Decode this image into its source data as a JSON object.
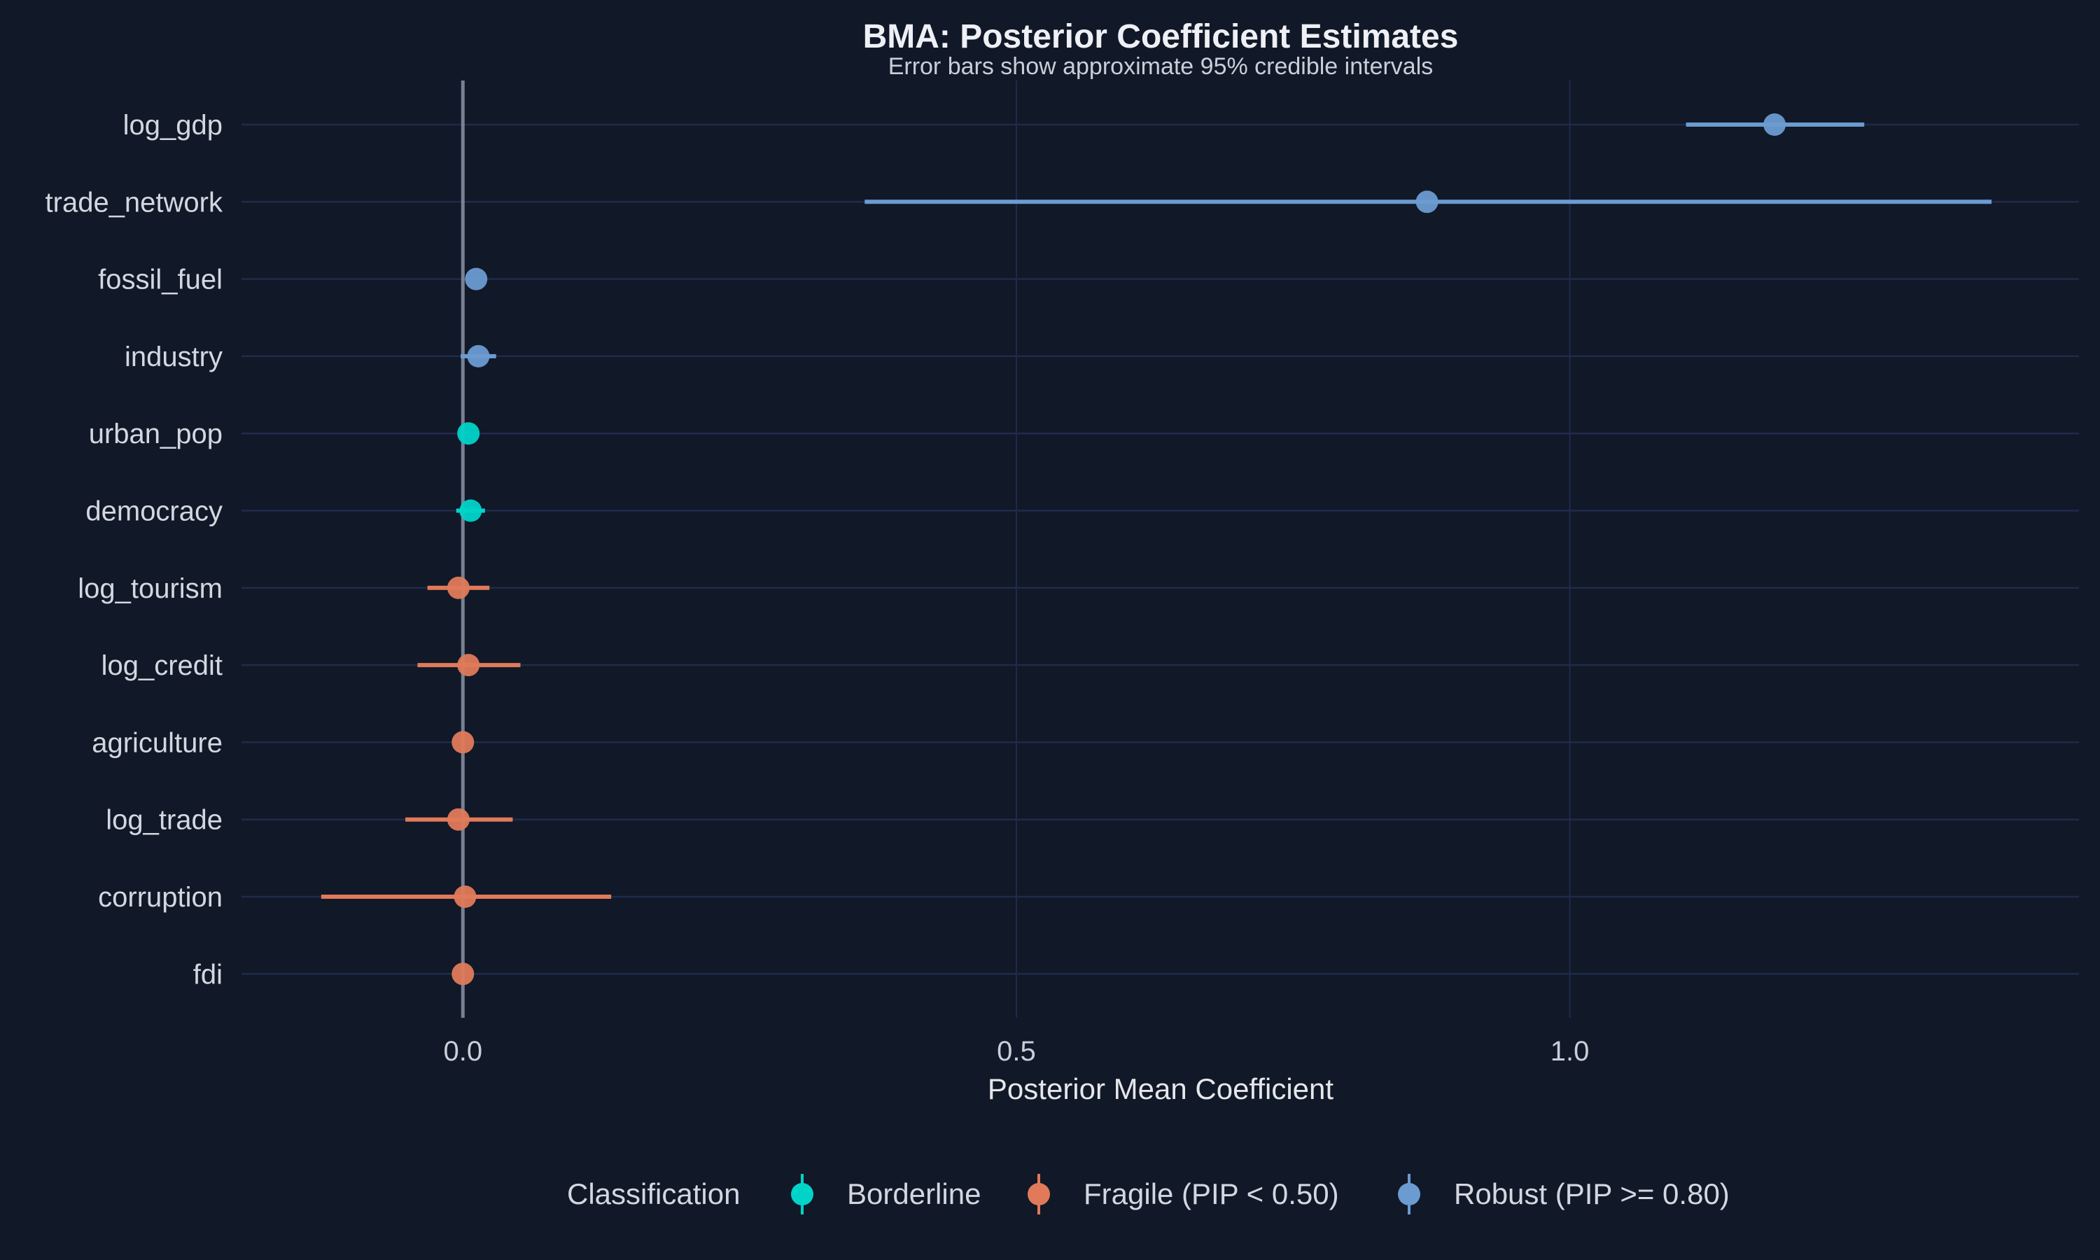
{
  "chart_data": {
    "type": "scatter",
    "title": "BMA: Posterior Coefficient Estimates",
    "subtitle": "Error bars show approximate 95% credible intervals",
    "xlabel": "Posterior Mean Coefficient",
    "ylabel": "",
    "xlim": [
      -0.2,
      1.46
    ],
    "xticks": [
      0.0,
      0.5,
      1.0
    ],
    "xtick_labels": [
      "0.0",
      "0.5",
      "1.0"
    ],
    "reference_line": 0,
    "grid": true,
    "legend": {
      "title": "Classification",
      "placement": "bottom",
      "entries": [
        {
          "label": "Borderline",
          "color": "#00d4c8"
        },
        {
          "label": "Fragile (PIP < 0.50)",
          "color": "#e07a5a"
        },
        {
          "label": "Robust (PIP >= 0.80)",
          "color": "#6b9bd1"
        }
      ]
    },
    "points": [
      {
        "variable": "log_gdp",
        "mean": 1.185,
        "lower": 1.105,
        "upper": 1.266,
        "class": 2
      },
      {
        "variable": "trade_network",
        "mean": 0.871,
        "lower": 0.363,
        "upper": 1.381,
        "class": 2
      },
      {
        "variable": "fossil_fuel",
        "mean": 0.012,
        "lower": 0.012,
        "upper": 0.012,
        "class": 2
      },
      {
        "variable": "industry",
        "mean": 0.014,
        "lower": -0.002,
        "upper": 0.03,
        "class": 2
      },
      {
        "variable": "urban_pop",
        "mean": 0.005,
        "lower": 0.005,
        "upper": 0.005,
        "class": 0
      },
      {
        "variable": "democracy",
        "mean": 0.007,
        "lower": -0.006,
        "upper": 0.02,
        "class": 0
      },
      {
        "variable": "log_tourism",
        "mean": -0.004,
        "lower": -0.032,
        "upper": 0.024,
        "class": 1
      },
      {
        "variable": "log_credit",
        "mean": 0.005,
        "lower": -0.041,
        "upper": 0.052,
        "class": 1
      },
      {
        "variable": "agriculture",
        "mean": 0.0,
        "lower": 0.0,
        "upper": 0.0,
        "class": 1
      },
      {
        "variable": "log_trade",
        "mean": -0.004,
        "lower": -0.052,
        "upper": 0.045,
        "class": 1
      },
      {
        "variable": "corruption",
        "mean": 0.002,
        "lower": -0.128,
        "upper": 0.134,
        "class": 1
      },
      {
        "variable": "fdi",
        "mean": 0.0,
        "lower": 0.0,
        "upper": 0.0,
        "class": 1
      }
    ]
  }
}
